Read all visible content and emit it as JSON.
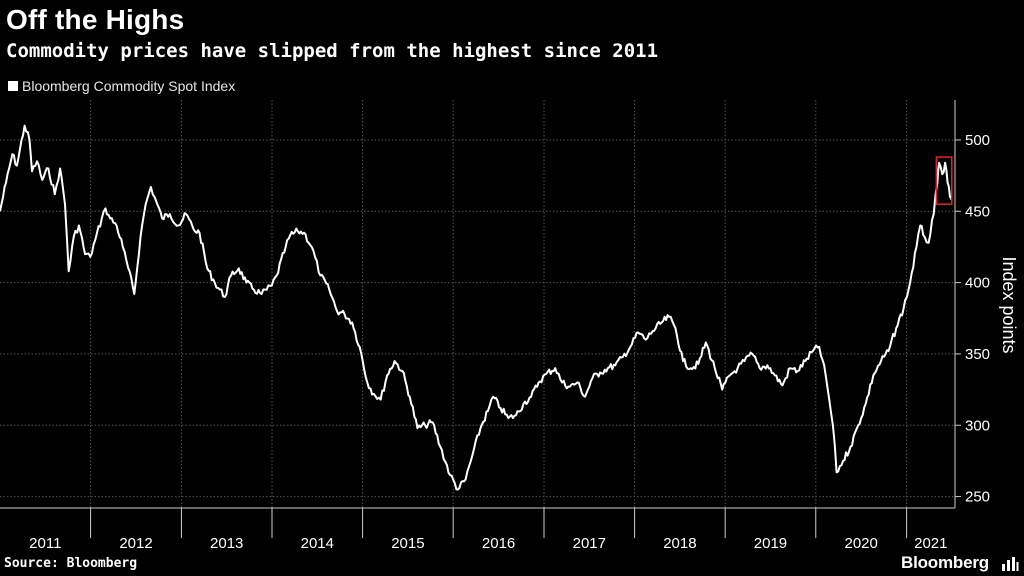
{
  "header": {
    "title": "Off the Highs",
    "subtitle": "Commodity prices have slipped from the highest since 2011"
  },
  "legend": {
    "label": "Bloomberg Commodity Spot Index"
  },
  "footer": {
    "source": "Source: Bloomberg",
    "brand": "Bloomberg"
  },
  "colors": {
    "background": "#000000",
    "line": "#ffffff",
    "grid": "#555555",
    "highlight": "#e0282e"
  },
  "chart_data": {
    "type": "line",
    "title": "Off the Highs",
    "subtitle": "Commodity prices have slipped from the highest since 2011",
    "ylabel": "Index points",
    "xlabel": "",
    "ylim": [
      242,
      528
    ],
    "xlim": [
      "2011-01-01",
      "2021-07-15"
    ],
    "y_ticks": [
      250,
      300,
      350,
      400,
      450,
      500
    ],
    "x_ticks": [
      "2011",
      "2012",
      "2013",
      "2014",
      "2015",
      "2016",
      "2017",
      "2018",
      "2019",
      "2020",
      "2021"
    ],
    "grid": true,
    "legend_position": "top-left",
    "series": [
      {
        "name": "Bloomberg Commodity Spot Index",
        "points": [
          [
            "2011-01-01",
            450
          ],
          [
            "2011-01-25",
            470
          ],
          [
            "2011-02-20",
            490
          ],
          [
            "2011-03-10",
            482
          ],
          [
            "2011-04-10",
            510
          ],
          [
            "2011-04-30",
            500
          ],
          [
            "2011-05-10",
            478
          ],
          [
            "2011-05-30",
            485
          ],
          [
            "2011-06-20",
            472
          ],
          [
            "2011-07-15",
            480
          ],
          [
            "2011-08-10",
            462
          ],
          [
            "2011-08-31",
            480
          ],
          [
            "2011-09-20",
            455
          ],
          [
            "2011-10-05",
            408
          ],
          [
            "2011-10-25",
            432
          ],
          [
            "2011-11-15",
            440
          ],
          [
            "2011-12-10",
            420
          ],
          [
            "2011-12-31",
            418
          ],
          [
            "2012-01-20",
            430
          ],
          [
            "2012-02-15",
            445
          ],
          [
            "2012-03-01",
            452
          ],
          [
            "2012-03-20",
            445
          ],
          [
            "2012-04-15",
            440
          ],
          [
            "2012-05-10",
            425
          ],
          [
            "2012-06-01",
            410
          ],
          [
            "2012-06-25",
            392
          ],
          [
            "2012-07-20",
            432
          ],
          [
            "2012-08-10",
            455
          ],
          [
            "2012-08-31",
            467
          ],
          [
            "2012-09-15",
            460
          ],
          [
            "2012-10-15",
            445
          ],
          [
            "2012-11-15",
            448
          ],
          [
            "2012-12-20",
            440
          ],
          [
            "2013-01-20",
            448
          ],
          [
            "2013-02-20",
            437
          ],
          [
            "2013-03-15",
            435
          ],
          [
            "2013-04-15",
            410
          ],
          [
            "2013-05-15",
            400
          ],
          [
            "2013-06-25",
            390
          ],
          [
            "2013-07-20",
            405
          ],
          [
            "2013-08-20",
            410
          ],
          [
            "2013-09-20",
            400
          ],
          [
            "2013-10-20",
            395
          ],
          [
            "2013-11-20",
            392
          ],
          [
            "2013-12-31",
            398
          ],
          [
            "2014-01-20",
            405
          ],
          [
            "2014-02-25",
            425
          ],
          [
            "2014-03-15",
            433
          ],
          [
            "2014-04-15",
            436
          ],
          [
            "2014-05-10",
            435
          ],
          [
            "2014-06-10",
            425
          ],
          [
            "2014-07-15",
            405
          ],
          [
            "2014-08-20",
            395
          ],
          [
            "2014-09-20",
            380
          ],
          [
            "2014-10-20",
            378
          ],
          [
            "2014-11-20",
            372
          ],
          [
            "2014-12-20",
            355
          ],
          [
            "2015-01-20",
            330
          ],
          [
            "2015-02-15",
            322
          ],
          [
            "2015-03-15",
            318
          ],
          [
            "2015-04-10",
            335
          ],
          [
            "2015-05-10",
            345
          ],
          [
            "2015-06-10",
            338
          ],
          [
            "2015-07-10",
            320
          ],
          [
            "2015-08-10",
            298
          ],
          [
            "2015-09-10",
            300
          ],
          [
            "2015-10-10",
            302
          ],
          [
            "2015-11-10",
            285
          ],
          [
            "2015-12-20",
            265
          ],
          [
            "2016-01-20",
            255
          ],
          [
            "2016-02-20",
            262
          ],
          [
            "2016-03-20",
            280
          ],
          [
            "2016-04-20",
            298
          ],
          [
            "2016-05-20",
            310
          ],
          [
            "2016-06-10",
            320
          ],
          [
            "2016-07-10",
            312
          ],
          [
            "2016-08-10",
            305
          ],
          [
            "2016-09-10",
            307
          ],
          [
            "2016-10-10",
            315
          ],
          [
            "2016-11-10",
            320
          ],
          [
            "2016-12-10",
            330
          ],
          [
            "2017-01-10",
            336
          ],
          [
            "2017-02-15",
            340
          ],
          [
            "2017-03-15",
            330
          ],
          [
            "2017-04-15",
            327
          ],
          [
            "2017-05-15",
            330
          ],
          [
            "2017-06-15",
            320
          ],
          [
            "2017-07-15",
            333
          ],
          [
            "2017-08-15",
            337
          ],
          [
            "2017-09-15",
            340
          ],
          [
            "2017-10-15",
            342
          ],
          [
            "2017-11-15",
            348
          ],
          [
            "2017-12-15",
            355
          ],
          [
            "2018-01-15",
            365
          ],
          [
            "2018-02-15",
            360
          ],
          [
            "2018-03-15",
            366
          ],
          [
            "2018-04-20",
            372
          ],
          [
            "2018-05-20",
            376
          ],
          [
            "2018-06-15",
            368
          ],
          [
            "2018-07-15",
            345
          ],
          [
            "2018-08-15",
            340
          ],
          [
            "2018-09-15",
            343
          ],
          [
            "2018-10-15",
            358
          ],
          [
            "2018-11-20",
            340
          ],
          [
            "2018-12-20",
            325
          ],
          [
            "2019-01-20",
            335
          ],
          [
            "2019-02-20",
            340
          ],
          [
            "2019-03-20",
            345
          ],
          [
            "2019-04-20",
            350
          ],
          [
            "2019-05-20",
            340
          ],
          [
            "2019-06-20",
            342
          ],
          [
            "2019-07-20",
            335
          ],
          [
            "2019-08-20",
            328
          ],
          [
            "2019-09-20",
            340
          ],
          [
            "2019-10-20",
            338
          ],
          [
            "2019-11-20",
            345
          ],
          [
            "2019-12-20",
            352
          ],
          [
            "2020-01-15",
            355
          ],
          [
            "2020-02-10",
            335
          ],
          [
            "2020-03-10",
            300
          ],
          [
            "2020-03-25",
            267
          ],
          [
            "2020-04-20",
            275
          ],
          [
            "2020-05-20",
            285
          ],
          [
            "2020-06-20",
            300
          ],
          [
            "2020-07-20",
            315
          ],
          [
            "2020-08-20",
            335
          ],
          [
            "2020-09-20",
            345
          ],
          [
            "2020-10-20",
            352
          ],
          [
            "2020-11-20",
            368
          ],
          [
            "2020-12-20",
            382
          ],
          [
            "2021-01-15",
            400
          ],
          [
            "2021-02-10",
            425
          ],
          [
            "2021-02-25",
            440
          ],
          [
            "2021-03-15",
            432
          ],
          [
            "2021-03-31",
            428
          ],
          [
            "2021-04-20",
            448
          ],
          [
            "2021-05-05",
            470
          ],
          [
            "2021-05-12",
            484
          ],
          [
            "2021-05-25",
            476
          ],
          [
            "2021-06-05",
            484
          ],
          [
            "2021-06-15",
            470
          ],
          [
            "2021-06-25",
            460
          ],
          [
            "2021-07-01",
            458
          ]
        ]
      }
    ],
    "highlight": {
      "x_range": [
        "2021-05-01",
        "2021-07-02"
      ],
      "y_range": [
        455,
        488
      ]
    }
  }
}
